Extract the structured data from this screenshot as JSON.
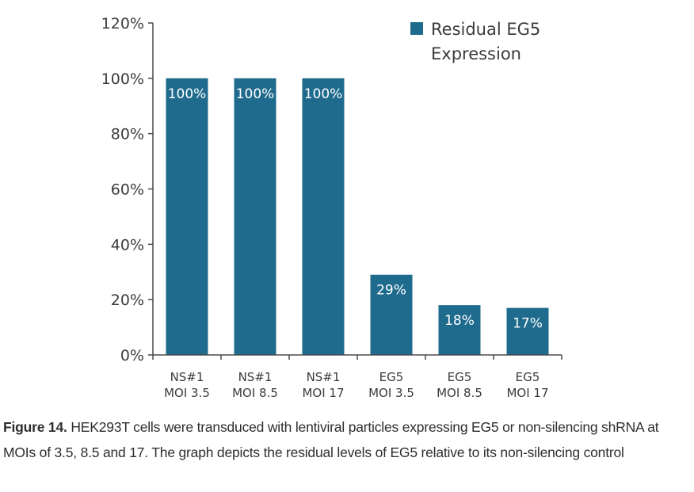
{
  "chart_data": {
    "type": "bar",
    "title": "",
    "xlabel": "",
    "ylabel": "",
    "categories": [
      [
        "NS#1",
        "MOI 3.5"
      ],
      [
        "NS#1",
        "MOI 8.5"
      ],
      [
        "NS#1",
        "MOI 17"
      ],
      [
        "EG5",
        "MOI 3.5"
      ],
      [
        "EG5",
        "MOI 8.5"
      ],
      [
        "EG5",
        "MOI 17"
      ]
    ],
    "series": [
      {
        "name": "Residual EG5 Expression",
        "color": "#1f6b8e",
        "values": [
          100,
          100,
          100,
          29,
          18,
          17
        ],
        "data_labels": [
          "100%",
          "100%",
          "100%",
          "29%",
          "18%",
          "17%"
        ]
      }
    ],
    "ylim": [
      0,
      120
    ],
    "yticks": [
      0,
      20,
      40,
      60,
      80,
      100,
      120
    ],
    "ytick_labels": [
      "0%",
      "20%",
      "40%",
      "60%",
      "80%",
      "100%",
      "120%"
    ],
    "grid": false,
    "legend": {
      "position": "top-right",
      "lines": [
        "Residual EG5",
        "Expression"
      ]
    }
  },
  "caption": {
    "label": "Figure 14.",
    "text": " HEK293T cells were transduced with lentiviral particles expressing EG5 or non-silencing shRNA at MOIs of 3.5, 8.5 and 17. The graph depicts the residual levels of EG5 relative to its non-silencing control"
  }
}
